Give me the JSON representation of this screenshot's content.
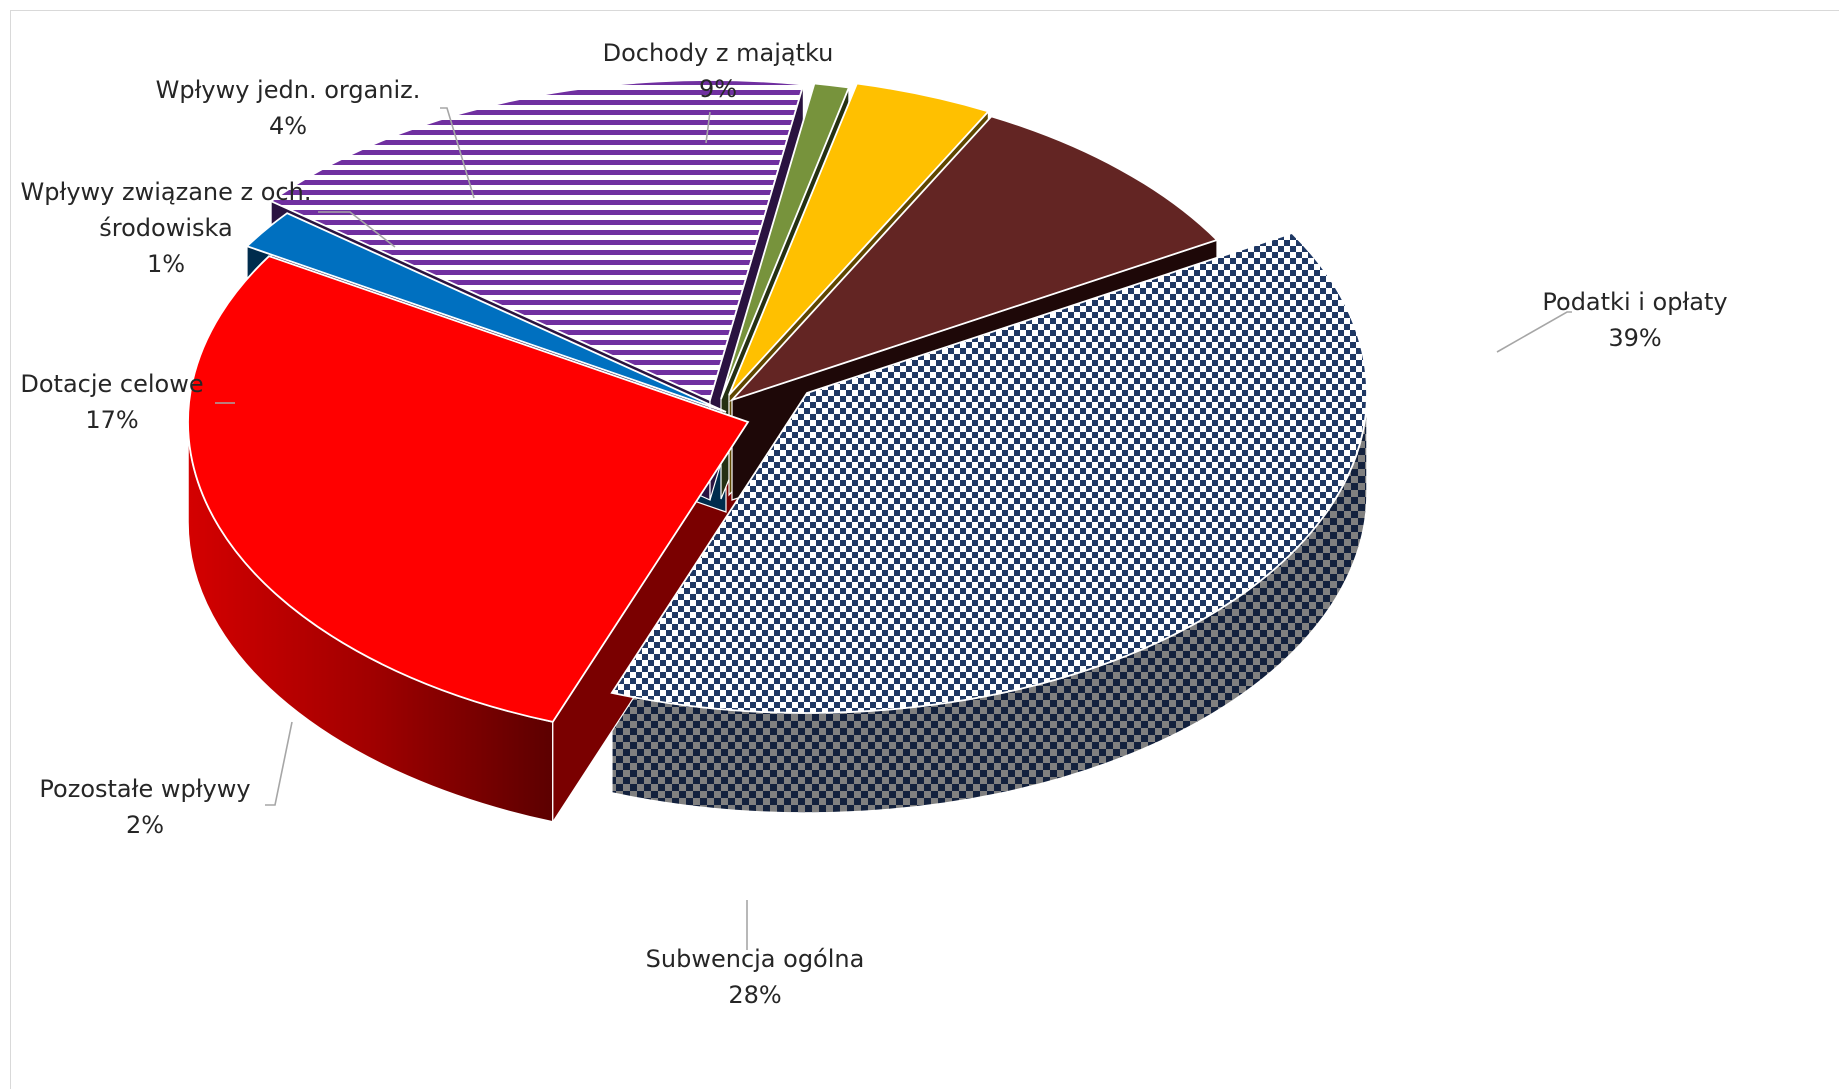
{
  "chart_data": {
    "type": "pie",
    "title": "",
    "legend": "none",
    "slices": [
      {
        "name": "Podatki i opłaty",
        "value": 39,
        "label": "39%",
        "color": "#1f3864",
        "pattern": "checker"
      },
      {
        "name": "Subwencja ogólna",
        "value": 28,
        "label": "28%",
        "color": "#ff0000",
        "pattern": "gradient"
      },
      {
        "name": "Pozostałe wpływy",
        "value": 2,
        "label": "2%",
        "color": "#0070c0",
        "pattern": "solid"
      },
      {
        "name": "Dotacje celowe",
        "value": 17,
        "label": "17%",
        "color": "#7030a0",
        "pattern": "hstripes"
      },
      {
        "name": "Wpływy związane z och. środowiska",
        "value": 1,
        "label": "1%",
        "color": "#77933c",
        "pattern": "solid"
      },
      {
        "name": "Wpływy jedn. organiz.",
        "value": 4,
        "label": "4%",
        "color": "#ffc000",
        "pattern": "solid"
      },
      {
        "name": "Dochody z majątku",
        "value": 9,
        "label": "9%",
        "color": "#632523",
        "pattern": "solid"
      }
    ]
  }
}
